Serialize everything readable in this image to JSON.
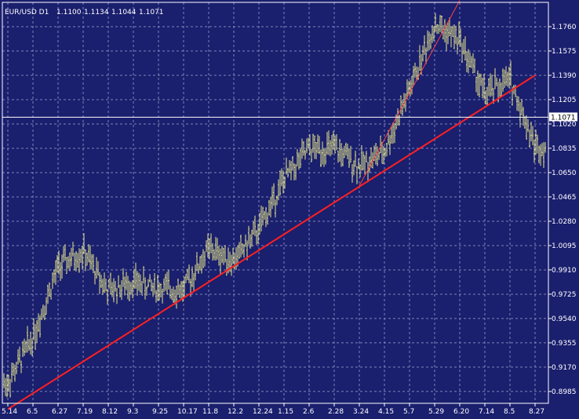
{
  "header": {
    "symbol_tf": "EUR/USD D1",
    "open": "1.1100",
    "high": "1.1134",
    "low": "1.1044",
    "close": "1.1071"
  },
  "colors": {
    "background": "#1a1f6e",
    "bars": "#e6e68a",
    "grid": "#7f86b8",
    "trendline_main": "#ff2020",
    "trendline_steep": "#ff4040",
    "current_price_line": "#ffffff"
  },
  "chart_data": {
    "type": "ohlc",
    "symbol": "EUR/USD",
    "timeframe": "D1",
    "current_price": "1.1071",
    "ylim": [
      0.8895,
      1.1945
    ],
    "y_ticks": [
      "1.1760",
      "1.1575",
      "1.1390",
      "1.1205",
      "1.1020",
      "1.0835",
      "1.0650",
      "1.0465",
      "1.0280",
      "1.0095",
      "0.9910",
      "0.9725",
      "0.9540",
      "0.9355",
      "0.9170",
      "0.8985"
    ],
    "x_ticks": [
      "5.14",
      "6.5",
      "6.27",
      "7.19",
      "8.12",
      "9.3",
      "9.25",
      "10.17",
      "11.8",
      "12.2",
      "12.24",
      "1.15",
      "2.6",
      "2.28",
      "3.24",
      "4.15",
      "5.7",
      "5.29",
      "6.20",
      "7.14",
      "8.5",
      "8.27"
    ],
    "close_path": [
      {
        "x": "5.14",
        "y": 0.905
      },
      {
        "x": "6.5",
        "y": 0.94
      },
      {
        "x": "6.27",
        "y": 0.993
      },
      {
        "x": "7.19",
        "y": 1.005
      },
      {
        "x": "8.12",
        "y": 0.975
      },
      {
        "x": "9.3",
        "y": 0.982
      },
      {
        "x": "9.25",
        "y": 0.977
      },
      {
        "x": "10.17",
        "y": 0.976
      },
      {
        "x": "11.8",
        "y": 1.007
      },
      {
        "x": "12.2",
        "y": 0.998
      },
      {
        "x": "12.24",
        "y": 1.022
      },
      {
        "x": "1.15",
        "y": 1.06
      },
      {
        "x": "2.6",
        "y": 1.083
      },
      {
        "x": "2.28",
        "y": 1.083
      },
      {
        "x": "3.24",
        "y": 1.07
      },
      {
        "x": "4.15",
        "y": 1.081
      },
      {
        "x": "5.7",
        "y": 1.128
      },
      {
        "x": "5.29",
        "y": 1.178
      },
      {
        "x": "6.20",
        "y": 1.166
      },
      {
        "x": "7.14",
        "y": 1.124
      },
      {
        "x": "8.5",
        "y": 1.136
      },
      {
        "x": "8.27",
        "y": 1.085
      }
    ],
    "trendlines": [
      {
        "from": {
          "x": "5.14",
          "y": 0.885
        },
        "to": {
          "x": "8.27",
          "y": 1.139
        }
      },
      {
        "from": {
          "x": "3.24",
          "y": 1.055
        },
        "to": {
          "x": "6.20",
          "y": 1.196
        }
      }
    ],
    "grid": true
  }
}
